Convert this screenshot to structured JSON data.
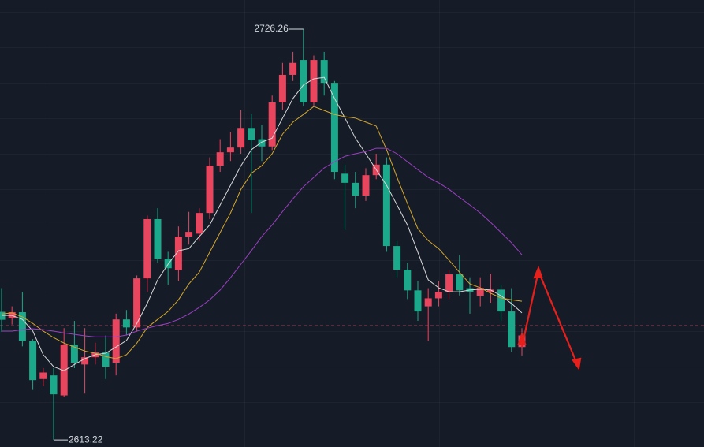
{
  "chart_data": {
    "type": "candlestick",
    "ylim": [
      2611.3,
      2734.3
    ],
    "up_color": "#e8455f",
    "down_color": "#1ca88a",
    "open": [
      2648.5,
      2646.7,
      2648.4,
      2640.5,
      2630,
      2631,
      2625.5,
      2639.5,
      2634,
      2636,
      2637.3,
      2634.5,
      2646.4,
      2644.2,
      2657.7,
      2674,
      2663.1,
      2660,
      2669.2,
      2670,
      2675.7,
      2688.7,
      2692.4,
      2693.7,
      2699.1,
      2696,
      2694,
      2706.1,
      2713.7,
      2717.8,
      2706.1,
      2717.8,
      2711.5,
      2686.5,
      2684,
      2680.5,
      2686.1,
      2689,
      2666.6,
      2660.1,
      2654.4,
      2650,
      2652.2,
      2654,
      2658.8,
      2655,
      2652.9,
      2653.9,
      2654.6,
      2648.6,
      2638.8
    ],
    "high": [
      2655,
      2650,
      2654,
      2641,
      2633,
      2633,
      2644,
      2646,
      2644,
      2640,
      2642,
      2648,
      2649,
      2658.5,
      2675,
      2677,
      2665,
      2672,
      2676,
      2677,
      2691,
      2696,
      2698,
      2704,
      2703,
      2700,
      2708,
      2717,
      2720,
      2726.26,
      2719,
      2720,
      2712,
      2689,
      2687,
      2688,
      2692,
      2691,
      2668,
      2662,
      2657,
      2655,
      2657,
      2660,
      2664,
      2658,
      2658,
      2659,
      2656,
      2655,
      2644
    ],
    "low": [
      2643,
      2645,
      2639,
      2627,
      2628,
      2613.22,
      2625,
      2633,
      2626,
      2634,
      2630,
      2631,
      2642,
      2643,
      2654,
      2662,
      2656,
      2657,
      2667,
      2668,
      2674,
      2687,
      2690,
      2692,
      2675.7,
      2690,
      2693,
      2704,
      2712,
      2705,
      2705,
      2708,
      2685,
      2671,
      2677,
      2679,
      2685,
      2665,
      2658,
      2652,
      2646,
      2640.5,
      2650,
      2652,
      2653,
      2648,
      2650,
      2651,
      2646,
      2637.5,
      2636.5
    ],
    "close": [
      2646.3,
      2648.4,
      2640.5,
      2629.7,
      2631.8,
      2625.8,
      2639.5,
      2634.5,
      2636,
      2637.3,
      2633.4,
      2646.4,
      2644.2,
      2657.7,
      2674,
      2663.1,
      2660.5,
      2669.2,
      2670.5,
      2675.7,
      2688.7,
      2692.4,
      2693.7,
      2699.1,
      2695.7,
      2694,
      2706.1,
      2713.7,
      2717,
      2706.1,
      2717.8,
      2711.5,
      2687,
      2684,
      2680.5,
      2686.1,
      2689,
      2666.6,
      2660.1,
      2654.4,
      2648.6,
      2652.2,
      2654,
      2658.8,
      2654.4,
      2654,
      2655.1,
      2654.6,
      2648.6,
      2638.8,
      2642
    ],
    "lines": [
      {
        "color": "#d9d9d9",
        "values": [
          2647.5,
          2647.5,
          2646.4,
          2643.2,
          2636.7,
          2633.4,
          2632.3,
          2634.0,
          2635.6,
          2636.7,
          2637.1,
          2638.8,
          2640.6,
          2645.3,
          2650.8,
          2657.3,
          2661.6,
          2665.3,
          2665.9,
          2669.2,
          2672.4,
          2677.9,
          2683.3,
          2688.7,
          2693.1,
          2695.2,
          2696.3,
          2701.8,
          2707.2,
          2710.9,
          2712.6,
          2713.0,
          2707.2,
          2701.8,
          2696.3,
          2692.0,
          2687.6,
          2683.3,
          2677.9,
          2672.4,
          2664.9,
          2657.3,
          2655.1,
          2654.0,
          2654.0,
          2654.5,
          2654.7,
          2654.5,
          2652.9,
          2650.8,
          2648.2
        ]
      },
      {
        "color": "#d4a72c",
        "values": [
          2647.9,
          2648.2,
          2647.1,
          2645.3,
          2643.2,
          2641.4,
          2639.9,
          2638.8,
          2637.7,
          2637.1,
          2636.2,
          2635.6,
          2636.7,
          2639.9,
          2644.2,
          2646.4,
          2648.6,
          2651.8,
          2656.2,
          2659.4,
          2664.9,
          2670.3,
          2675.7,
          2682.2,
          2686.6,
          2688.7,
          2692.0,
          2697.4,
          2700.7,
          2702.8,
          2705.0,
          2703.9,
          2702.8,
          2702.2,
          2701.8,
          2700.7,
          2699.6,
          2693.1,
          2685.5,
          2678.3,
          2671.4,
          2668.1,
          2665.9,
          2662.7,
          2659.4,
          2656.2,
          2655.1,
          2653.6,
          2652.3,
          2651.8,
          2651.4
        ]
      },
      {
        "color": "#9b3fc2",
        "values": [
          2643.2,
          2643.2,
          2643.6,
          2643.8,
          2643.6,
          2643.2,
          2642.7,
          2642.3,
          2641.9,
          2641.6,
          2641.6,
          2641.6,
          2642.1,
          2643.2,
          2644.0,
          2644.7,
          2645.3,
          2646.4,
          2647.9,
          2649.7,
          2651.8,
          2654.5,
          2657.9,
          2661.6,
          2665.3,
          2669.2,
          2672.4,
          2676.1,
          2679.6,
          2682.9,
          2685.5,
          2688.1,
          2689.8,
          2691.3,
          2692.0,
          2692.6,
          2693.5,
          2693.5,
          2692.0,
          2689.8,
          2687.6,
          2685.5,
          2684.0,
          2682.2,
          2680.0,
          2677.9,
          2675.7,
          2673.1,
          2670.3,
          2667.5,
          2664.2
        ]
      }
    ],
    "price_line": 2644.7,
    "high_label": "2726.26",
    "low_label": "2613.22"
  }
}
